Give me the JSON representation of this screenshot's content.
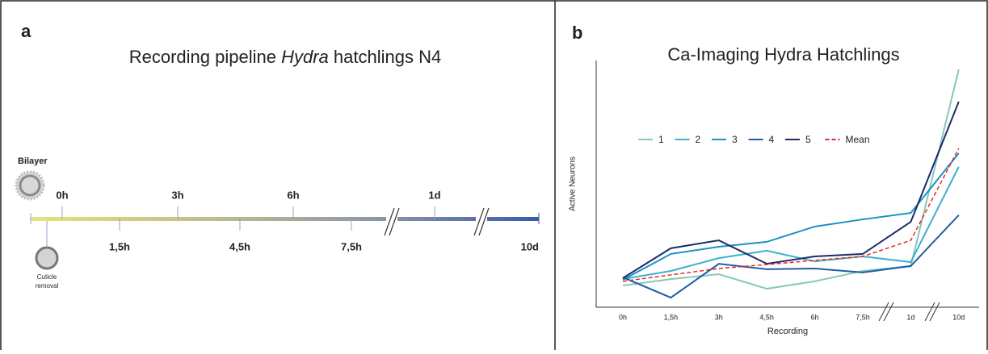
{
  "panel_a": {
    "label": "a",
    "title": [
      "Recording pipeline",
      "Hydra",
      "hatchlings N4"
    ],
    "bilayer": "Bilayer",
    "cuticle": [
      "Cuticle",
      "removal"
    ],
    "top_ticks": [
      "0h",
      "3h",
      "6h",
      "1d"
    ],
    "bottom_ticks": [
      "1,5h",
      "4,5h",
      "7,5h",
      "10d"
    ]
  },
  "chart_data": {
    "type": "line",
    "panel_label": "b",
    "title": "Ca-Imaging Hydra Hatchlings",
    "y_label": "Active Neurons",
    "x_label": "Recording",
    "categories": [
      "0h",
      "1,5h",
      "3h",
      "4,5h",
      "6h",
      "7,5h",
      "1d",
      "10d"
    ],
    "ylim": [
      0,
      100
    ],
    "series": [
      {
        "name": "1",
        "color": "#86c9b8",
        "values": [
          8.8,
          11.4,
          13.4,
          7.5,
          10.5,
          14.7,
          16.7,
          96.4
        ]
      },
      {
        "name": "2",
        "color": "#3db2cc",
        "values": [
          11.4,
          14.7,
          19.9,
          22.9,
          18.6,
          20.6,
          18.3,
          56.9
        ]
      },
      {
        "name": "3",
        "color": "#1993c2",
        "values": [
          11.1,
          21.6,
          24.5,
          26.5,
          32.7,
          35.6,
          38.2,
          62.4
        ]
      },
      {
        "name": "4",
        "color": "#1e5ea8",
        "values": [
          12.1,
          3.9,
          17.6,
          15.4,
          15.7,
          14.1,
          16.7,
          37.3
        ]
      },
      {
        "name": "5",
        "color": "#1f2a6b",
        "values": [
          11.8,
          23.9,
          27.1,
          17.6,
          20.6,
          21.6,
          34.6,
          83.3
        ]
      },
      {
        "name": "Mean",
        "color": "#e8262a",
        "dashed": true,
        "values": [
          10.5,
          13.1,
          15.7,
          17.3,
          19.0,
          20.6,
          27.1,
          64.4
        ]
      }
    ]
  }
}
